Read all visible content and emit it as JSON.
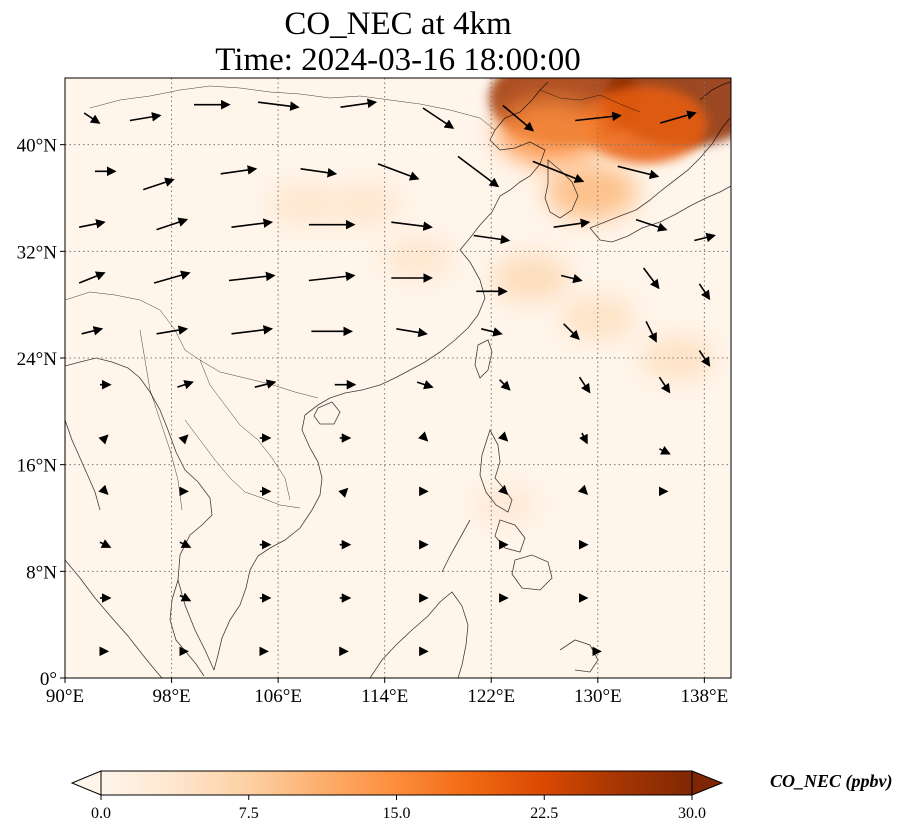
{
  "title": {
    "line1": "CO_NEC at 4km",
    "line2": "Time: 2024-03-16 18:00:00"
  },
  "map": {
    "lon_range": [
      90,
      140
    ],
    "lat_range": [
      0,
      45
    ],
    "x_ticks": [
      {
        "value": 90,
        "label": "90°E"
      },
      {
        "value": 98,
        "label": "98°E"
      },
      {
        "value": 106,
        "label": "106°E"
      },
      {
        "value": 114,
        "label": "114°E"
      },
      {
        "value": 122,
        "label": "122°E"
      },
      {
        "value": 130,
        "label": "130°E"
      },
      {
        "value": 138,
        "label": "138°E"
      }
    ],
    "y_ticks": [
      {
        "value": 0,
        "label": "0°"
      },
      {
        "value": 8,
        "label": "8°N"
      },
      {
        "value": 16,
        "label": "16°N"
      },
      {
        "value": 24,
        "label": "24°N"
      },
      {
        "value": 32,
        "label": "32°N"
      },
      {
        "value": 40,
        "label": "40°N"
      }
    ],
    "gridlines": true,
    "colormap": {
      "stops": [
        "#fff5eb",
        "#fee6ce",
        "#fdd0a2",
        "#fdae6b",
        "#fd8d3c",
        "#f16913",
        "#d94801",
        "#a63603",
        "#7f2704"
      ]
    }
  },
  "colorbar": {
    "label": "CO_NEC (ppbv)",
    "range": [
      0,
      30
    ],
    "ticks": [
      {
        "value": 0,
        "label": "0.0"
      },
      {
        "value": 7.5,
        "label": "7.5"
      },
      {
        "value": 15,
        "label": "15.0"
      },
      {
        "value": 22.5,
        "label": "22.5"
      },
      {
        "value": 30,
        "label": "30.0"
      }
    ],
    "extend": "both"
  },
  "chart_data": {
    "type": "heatmap",
    "variable": "CO_NEC",
    "unit": "ppbv",
    "plumes": [
      {
        "lon": 127.5,
        "lat": 43.5,
        "value": 27
      },
      {
        "lon": 136.5,
        "lat": 43.5,
        "value": 29
      },
      {
        "lon": 133.5,
        "lat": 41.5,
        "value": 20
      },
      {
        "lon": 126.5,
        "lat": 41.0,
        "value": 15
      },
      {
        "lon": 129.5,
        "lat": 36.5,
        "value": 10
      },
      {
        "lon": 125.0,
        "lat": 30.0,
        "value": 6
      },
      {
        "lon": 130.0,
        "lat": 27.0,
        "value": 5
      },
      {
        "lon": 136.0,
        "lat": 24.0,
        "value": 5
      },
      {
        "lon": 108.0,
        "lat": 35.5,
        "value": 4
      },
      {
        "lon": 112.5,
        "lat": 35.5,
        "value": 4
      },
      {
        "lon": 116.5,
        "lat": 31.5,
        "value": 4
      },
      {
        "lon": 123.0,
        "lat": 13.0,
        "value": 3
      }
    ],
    "wind_vectors": [
      {
        "lon": 92,
        "lat": 42,
        "u": 3,
        "v": -2
      },
      {
        "lon": 96,
        "lat": 42,
        "u": 6,
        "v": 1
      },
      {
        "lon": 101,
        "lat": 43,
        "u": 7,
        "v": 0
      },
      {
        "lon": 106,
        "lat": 43,
        "u": 8,
        "v": -1
      },
      {
        "lon": 112,
        "lat": 43,
        "u": 7,
        "v": 1
      },
      {
        "lon": 118,
        "lat": 42,
        "u": 6,
        "v": -4
      },
      {
        "lon": 124,
        "lat": 42,
        "u": 6,
        "v": -5
      },
      {
        "lon": 130,
        "lat": 42,
        "u": 9,
        "v": 1
      },
      {
        "lon": 136,
        "lat": 42,
        "u": 7,
        "v": 2
      },
      {
        "lon": 93,
        "lat": 38,
        "u": 4,
        "v": 0
      },
      {
        "lon": 97,
        "lat": 37,
        "u": 6,
        "v": 2
      },
      {
        "lon": 103,
        "lat": 38,
        "u": 7,
        "v": 1
      },
      {
        "lon": 109,
        "lat": 38,
        "u": 7,
        "v": -1
      },
      {
        "lon": 115,
        "lat": 38,
        "u": 8,
        "v": -3
      },
      {
        "lon": 121,
        "lat": 38,
        "u": 8,
        "v": -6
      },
      {
        "lon": 127,
        "lat": 38,
        "u": 10,
        "v": -4
      },
      {
        "lon": 133,
        "lat": 38,
        "u": 8,
        "v": -2
      },
      {
        "lon": 92,
        "lat": 34,
        "u": 5,
        "v": 1
      },
      {
        "lon": 98,
        "lat": 34,
        "u": 6,
        "v": 2
      },
      {
        "lon": 104,
        "lat": 34,
        "u": 8,
        "v": 1
      },
      {
        "lon": 110,
        "lat": 34,
        "u": 9,
        "v": 0
      },
      {
        "lon": 116,
        "lat": 34,
        "u": 8,
        "v": -1
      },
      {
        "lon": 122,
        "lat": 33,
        "u": 7,
        "v": -1
      },
      {
        "lon": 128,
        "lat": 34,
        "u": 7,
        "v": 1
      },
      {
        "lon": 134,
        "lat": 34,
        "u": 6,
        "v": -2
      },
      {
        "lon": 138,
        "lat": 33,
        "u": 4,
        "v": 1
      },
      {
        "lon": 92,
        "lat": 30,
        "u": 5,
        "v": 2
      },
      {
        "lon": 98,
        "lat": 30,
        "u": 7,
        "v": 2
      },
      {
        "lon": 104,
        "lat": 30,
        "u": 9,
        "v": 1
      },
      {
        "lon": 110,
        "lat": 30,
        "u": 9,
        "v": 1
      },
      {
        "lon": 116,
        "lat": 30,
        "u": 8,
        "v": 0
      },
      {
        "lon": 122,
        "lat": 29,
        "u": 6,
        "v": 0
      },
      {
        "lon": 128,
        "lat": 30,
        "u": 4,
        "v": -1
      },
      {
        "lon": 134,
        "lat": 30,
        "u": 3,
        "v": -4
      },
      {
        "lon": 138,
        "lat": 29,
        "u": 2,
        "v": -3
      },
      {
        "lon": 92,
        "lat": 26,
        "u": 4,
        "v": 1
      },
      {
        "lon": 98,
        "lat": 26,
        "u": 6,
        "v": 1
      },
      {
        "lon": 104,
        "lat": 26,
        "u": 8,
        "v": 1
      },
      {
        "lon": 110,
        "lat": 26,
        "u": 8,
        "v": 0
      },
      {
        "lon": 116,
        "lat": 26,
        "u": 6,
        "v": -1
      },
      {
        "lon": 122,
        "lat": 26,
        "u": 4,
        "v": -1
      },
      {
        "lon": 128,
        "lat": 26,
        "u": 3,
        "v": -3
      },
      {
        "lon": 134,
        "lat": 26,
        "u": 2,
        "v": -4
      },
      {
        "lon": 138,
        "lat": 24,
        "u": 2,
        "v": -3
      },
      {
        "lon": 93,
        "lat": 22,
        "u": 2,
        "v": 0
      },
      {
        "lon": 99,
        "lat": 22,
        "u": 3,
        "v": 1
      },
      {
        "lon": 105,
        "lat": 22,
        "u": 4,
        "v": 1
      },
      {
        "lon": 111,
        "lat": 22,
        "u": 4,
        "v": 0
      },
      {
        "lon": 117,
        "lat": 22,
        "u": 3,
        "v": -1
      },
      {
        "lon": 123,
        "lat": 22,
        "u": 2,
        "v": -2
      },
      {
        "lon": 129,
        "lat": 22,
        "u": 2,
        "v": -3
      },
      {
        "lon": 135,
        "lat": 22,
        "u": 2,
        "v": -3
      },
      {
        "lon": 93,
        "lat": 18,
        "u": 1,
        "v": 1
      },
      {
        "lon": 99,
        "lat": 18,
        "u": 1,
        "v": 1
      },
      {
        "lon": 105,
        "lat": 18,
        "u": 2,
        "v": 0
      },
      {
        "lon": 111,
        "lat": 18,
        "u": 2,
        "v": 0
      },
      {
        "lon": 117,
        "lat": 18,
        "u": 1,
        "v": -1
      },
      {
        "lon": 123,
        "lat": 18,
        "u": 1,
        "v": -1
      },
      {
        "lon": 129,
        "lat": 18,
        "u": 1,
        "v": -2
      },
      {
        "lon": 135,
        "lat": 17,
        "u": 2,
        "v": -1
      },
      {
        "lon": 93,
        "lat": 14,
        "u": 1,
        "v": -1
      },
      {
        "lon": 99,
        "lat": 14,
        "u": 1,
        "v": 0
      },
      {
        "lon": 105,
        "lat": 14,
        "u": 2,
        "v": 0
      },
      {
        "lon": 111,
        "lat": 14,
        "u": 1,
        "v": 1
      },
      {
        "lon": 117,
        "lat": 14,
        "u": 1,
        "v": 0
      },
      {
        "lon": 123,
        "lat": 14,
        "u": 1,
        "v": -1
      },
      {
        "lon": 129,
        "lat": 14,
        "u": 1,
        "v": -1
      },
      {
        "lon": 135,
        "lat": 14,
        "u": 1,
        "v": 0
      },
      {
        "lon": 93,
        "lat": 10,
        "u": 2,
        "v": -1
      },
      {
        "lon": 99,
        "lat": 10,
        "u": 2,
        "v": -1
      },
      {
        "lon": 105,
        "lat": 10,
        "u": 2,
        "v": 0
      },
      {
        "lon": 111,
        "lat": 10,
        "u": 2,
        "v": 0
      },
      {
        "lon": 117,
        "lat": 10,
        "u": 1,
        "v": 0
      },
      {
        "lon": 123,
        "lat": 10,
        "u": 1,
        "v": 0
      },
      {
        "lon": 129,
        "lat": 10,
        "u": 1,
        "v": 0
      },
      {
        "lon": 93,
        "lat": 6,
        "u": 2,
        "v": 0
      },
      {
        "lon": 99,
        "lat": 6,
        "u": 2,
        "v": -1
      },
      {
        "lon": 105,
        "lat": 6,
        "u": 2,
        "v": 0
      },
      {
        "lon": 111,
        "lat": 6,
        "u": 2,
        "v": 0
      },
      {
        "lon": 117,
        "lat": 6,
        "u": 1,
        "v": 0
      },
      {
        "lon": 123,
        "lat": 6,
        "u": 1,
        "v": 0
      },
      {
        "lon": 129,
        "lat": 6,
        "u": 1,
        "v": 0
      },
      {
        "lon": 93,
        "lat": 2,
        "u": 1,
        "v": 0
      },
      {
        "lon": 99,
        "lat": 2,
        "u": 1,
        "v": 0
      },
      {
        "lon": 105,
        "lat": 2,
        "u": 1,
        "v": 0
      },
      {
        "lon": 111,
        "lat": 2,
        "u": 1,
        "v": 0
      },
      {
        "lon": 117,
        "lat": 2,
        "u": 1,
        "v": 0
      },
      {
        "lon": 130,
        "lat": 2,
        "u": 1,
        "v": 0
      }
    ]
  }
}
